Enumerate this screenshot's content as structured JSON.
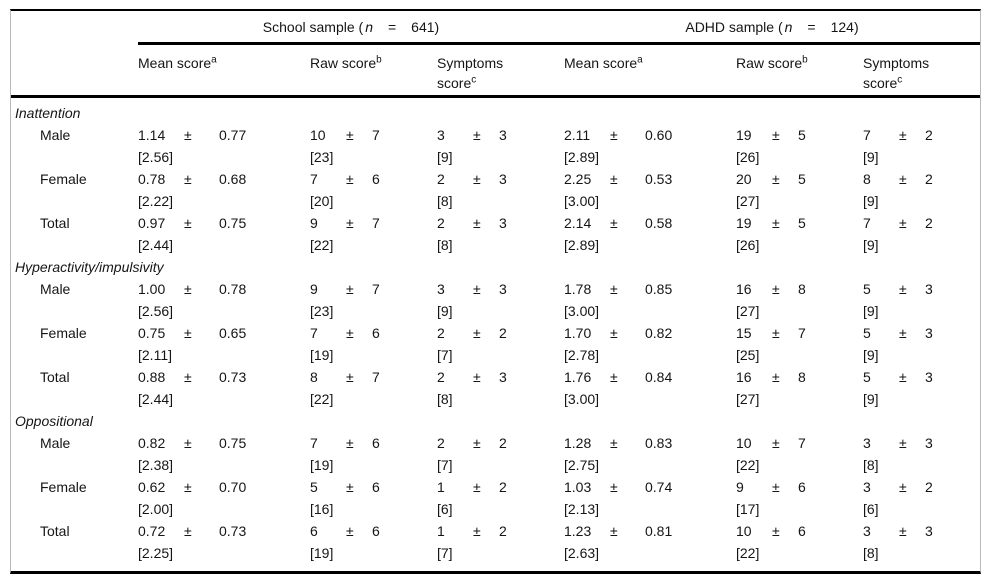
{
  "table": {
    "plus_minus": "±",
    "groups": [
      {
        "prefix": "School sample (",
        "n": "n",
        "eq": "=",
        "count": "641)"
      },
      {
        "prefix": "ADHD sample (",
        "n": "n",
        "eq": "=",
        "count": "124)"
      }
    ],
    "cols": {
      "mean": {
        "text": "Mean score",
        "sup": "a"
      },
      "raw": {
        "text": "Raw score",
        "sup": "b"
      },
      "sym": {
        "l1": "Symptoms",
        "l2": "score",
        "sup": "c"
      }
    },
    "sections": [
      {
        "label": "Inattention",
        "rows": [
          {
            "label": "Male",
            "cells": [
              {
                "v": "1.14",
                "s": "0.77",
                "b": "[2.56]"
              },
              {
                "v": "10",
                "s": "7",
                "b": "[23]"
              },
              {
                "v": "3",
                "s": "3",
                "b": "[9]"
              },
              {
                "v": "2.11",
                "s": "0.60",
                "b": "[2.89]"
              },
              {
                "v": "19",
                "s": "5",
                "b": "[26]"
              },
              {
                "v": "7",
                "s": "2",
                "b": "[9]"
              }
            ]
          },
          {
            "label": "Female",
            "cells": [
              {
                "v": "0.78",
                "s": "0.68",
                "b": "[2.22]"
              },
              {
                "v": "7",
                "s": "6",
                "b": "[20]"
              },
              {
                "v": "2",
                "s": "3",
                "b": "[8]"
              },
              {
                "v": "2.25",
                "s": "0.53",
                "b": "[3.00]"
              },
              {
                "v": "20",
                "s": "5",
                "b": "[27]"
              },
              {
                "v": "8",
                "s": "2",
                "b": "[9]"
              }
            ]
          },
          {
            "label": "Total",
            "cells": [
              {
                "v": "0.97",
                "s": "0.75",
                "b": "[2.44]"
              },
              {
                "v": "9",
                "s": "7",
                "b": "[22]"
              },
              {
                "v": "2",
                "s": "3",
                "b": "[8]"
              },
              {
                "v": "2.14",
                "s": "0.58",
                "b": "[2.89]"
              },
              {
                "v": "19",
                "s": "5",
                "b": "[26]"
              },
              {
                "v": "7",
                "s": "2",
                "b": "[9]"
              }
            ]
          }
        ]
      },
      {
        "label": "Hyperactivity/impulsivity",
        "rows": [
          {
            "label": "Male",
            "cells": [
              {
                "v": "1.00",
                "s": "0.78",
                "b": "[2.56]"
              },
              {
                "v": "9",
                "s": "7",
                "b": "[23]"
              },
              {
                "v": "3",
                "s": "3",
                "b": "[9]"
              },
              {
                "v": "1.78",
                "s": "0.85",
                "b": "[3.00]"
              },
              {
                "v": "16",
                "s": "8",
                "b": "[27]"
              },
              {
                "v": "5",
                "s": "3",
                "b": "[9]"
              }
            ]
          },
          {
            "label": "Female",
            "cells": [
              {
                "v": "0.75",
                "s": "0.65",
                "b": "[2.11]"
              },
              {
                "v": "7",
                "s": "6",
                "b": "[19]"
              },
              {
                "v": "2",
                "s": "2",
                "b": "[7]"
              },
              {
                "v": "1.70",
                "s": "0.82",
                "b": "[2.78]"
              },
              {
                "v": "15",
                "s": "7",
                "b": "[25]"
              },
              {
                "v": "5",
                "s": "3",
                "b": "[9]"
              }
            ]
          },
          {
            "label": "Total",
            "cells": [
              {
                "v": "0.88",
                "s": "0.73",
                "b": "[2.44]"
              },
              {
                "v": "8",
                "s": "7",
                "b": "[22]"
              },
              {
                "v": "2",
                "s": "3",
                "b": "[8]"
              },
              {
                "v": "1.76",
                "s": "0.84",
                "b": "[3.00]"
              },
              {
                "v": "16",
                "s": "8",
                "b": "[27]"
              },
              {
                "v": "5",
                "s": "3",
                "b": "[9]"
              }
            ]
          }
        ]
      },
      {
        "label": "Oppositional",
        "rows": [
          {
            "label": "Male",
            "cells": [
              {
                "v": "0.82",
                "s": "0.75",
                "b": "[2.38]"
              },
              {
                "v": "7",
                "s": "6",
                "b": "[19]"
              },
              {
                "v": "2",
                "s": "2",
                "b": "[7]"
              },
              {
                "v": "1.28",
                "s": "0.83",
                "b": "[2.75]"
              },
              {
                "v": "10",
                "s": "7",
                "b": "[22]"
              },
              {
                "v": "3",
                "s": "3",
                "b": "[8]"
              }
            ]
          },
          {
            "label": "Female",
            "cells": [
              {
                "v": "0.62",
                "s": "0.70",
                "b": "[2.00]"
              },
              {
                "v": "5",
                "s": "6",
                "b": "[16]"
              },
              {
                "v": "1",
                "s": "2",
                "b": "[6]"
              },
              {
                "v": "1.03",
                "s": "0.74",
                "b": "[2.13]"
              },
              {
                "v": "9",
                "s": "6",
                "b": "[17]"
              },
              {
                "v": "3",
                "s": "2",
                "b": "[6]"
              }
            ]
          },
          {
            "label": "Total",
            "cells": [
              {
                "v": "0.72",
                "s": "0.73",
                "b": "[2.25]"
              },
              {
                "v": "6",
                "s": "6",
                "b": "[19]"
              },
              {
                "v": "1",
                "s": "2",
                "b": "[7]"
              },
              {
                "v": "1.23",
                "s": "0.81",
                "b": "[2.63]"
              },
              {
                "v": "10",
                "s": "6",
                "b": "[22]"
              },
              {
                "v": "3",
                "s": "3",
                "b": "[8]"
              }
            ]
          }
        ]
      }
    ]
  }
}
